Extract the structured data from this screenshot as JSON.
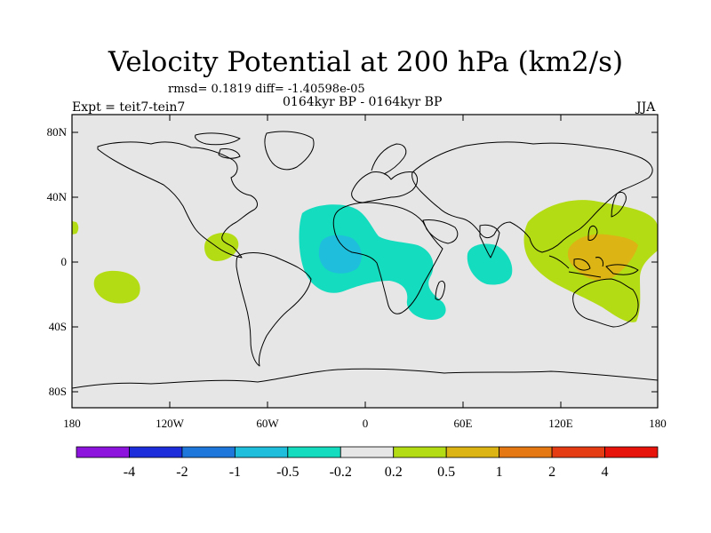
{
  "title": "Velocity Potential at 200 hPa (km2/s)",
  "stats": "rmsd= 0.1819 diff= -1.40598e-05",
  "period": "0164kyr BP - 0164kyr BP",
  "experiment": "Expt = teit7-tein7",
  "season": "JJA",
  "axes": {
    "lat_labels": [
      "80N",
      "40N",
      "0",
      "40S",
      "80S"
    ],
    "lon_labels": [
      "180",
      "120W",
      "60W",
      "0",
      "60E",
      "120E",
      "180"
    ]
  },
  "colorbar": {
    "colors": [
      "#8c14dc",
      "#1e2ddc",
      "#1e78dc",
      "#1ebedc",
      "#14dcbe",
      "#e6e6e6",
      "#b4dc14",
      "#dcb414",
      "#e67814",
      "#e63c14",
      "#e6140a"
    ],
    "labels": [
      "-4",
      "-2",
      "-1",
      "-0.5",
      "-0.2",
      "0.2",
      "0.5",
      "1",
      "2",
      "4"
    ]
  },
  "colors": {
    "land_sea_background": "#e6e6e6",
    "coastline": "#000000"
  }
}
